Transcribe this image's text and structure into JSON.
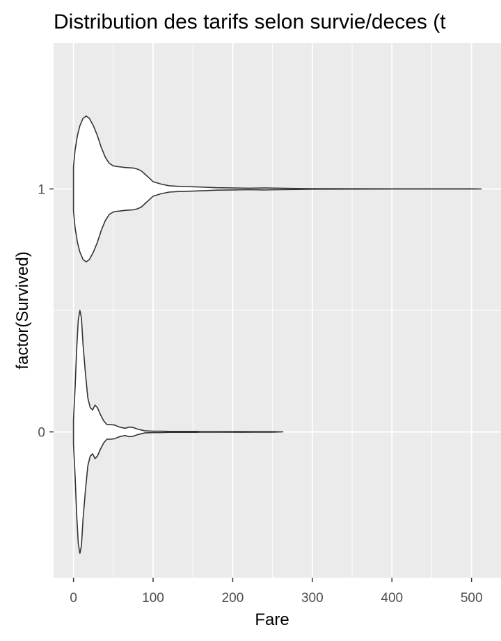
{
  "chart_data": {
    "type": "violin",
    "orientation": "horizontal",
    "title": "Distribution des tarifs selon survie/deces (t",
    "xlabel": "Fare",
    "ylabel": "factor(Survived)",
    "xlim": [
      -25,
      537
    ],
    "ylim": [
      -0.6,
      1.6
    ],
    "x_ticks": [
      0,
      100,
      200,
      300,
      400,
      500
    ],
    "x_tick_labels": [
      "0",
      "100",
      "200",
      "300",
      "400",
      "500"
    ],
    "y_ticks": [
      0,
      1
    ],
    "y_tick_labels": [
      "0",
      "1"
    ],
    "grid": true,
    "legend": "none",
    "colors": {
      "panel": "#ebebeb",
      "grid": "#ffffff",
      "violin_fill": "#ffffff",
      "violin_line": "#333333",
      "tick_label": "#4d4d4d"
    },
    "series": [
      {
        "category": "0",
        "y": 0,
        "x_min": 0,
        "x_max": 263,
        "profile": [
          [
            0,
            0.05
          ],
          [
            2,
            0.18
          ],
          [
            4,
            0.34
          ],
          [
            6,
            0.46
          ],
          [
            8,
            0.5
          ],
          [
            10,
            0.47
          ],
          [
            12,
            0.36
          ],
          [
            15,
            0.24
          ],
          [
            18,
            0.14
          ],
          [
            21,
            0.1
          ],
          [
            24,
            0.09
          ],
          [
            27,
            0.11
          ],
          [
            30,
            0.1
          ],
          [
            34,
            0.07
          ],
          [
            38,
            0.045
          ],
          [
            42,
            0.03
          ],
          [
            47,
            0.03
          ],
          [
            52,
            0.028
          ],
          [
            56,
            0.022
          ],
          [
            60,
            0.018
          ],
          [
            65,
            0.015
          ],
          [
            70,
            0.02
          ],
          [
            75,
            0.018
          ],
          [
            80,
            0.012
          ],
          [
            85,
            0.008
          ],
          [
            90,
            0.004
          ],
          [
            100,
            0.003
          ],
          [
            110,
            0.003
          ],
          [
            120,
            0.002
          ],
          [
            140,
            0.002
          ],
          [
            155,
            0.002
          ],
          [
            160,
            0.001
          ],
          [
            180,
            0.001
          ],
          [
            210,
            0.0015
          ],
          [
            230,
            0.001
          ],
          [
            250,
            0.001
          ],
          [
            263,
            0.0
          ]
        ]
      },
      {
        "category": "1",
        "y": 1,
        "x_min": 0,
        "x_max": 512,
        "profile": [
          [
            0,
            0.09
          ],
          [
            2,
            0.16
          ],
          [
            5,
            0.22
          ],
          [
            8,
            0.26
          ],
          [
            12,
            0.29
          ],
          [
            16,
            0.3
          ],
          [
            20,
            0.29
          ],
          [
            25,
            0.26
          ],
          [
            30,
            0.22
          ],
          [
            35,
            0.17
          ],
          [
            40,
            0.13
          ],
          [
            45,
            0.105
          ],
          [
            50,
            0.095
          ],
          [
            55,
            0.092
          ],
          [
            60,
            0.09
          ],
          [
            65,
            0.088
          ],
          [
            70,
            0.087
          ],
          [
            75,
            0.086
          ],
          [
            80,
            0.082
          ],
          [
            85,
            0.075
          ],
          [
            90,
            0.06
          ],
          [
            95,
            0.045
          ],
          [
            100,
            0.03
          ],
          [
            110,
            0.02
          ],
          [
            120,
            0.013
          ],
          [
            130,
            0.011
          ],
          [
            140,
            0.01
          ],
          [
            150,
            0.009
          ],
          [
            165,
            0.007
          ],
          [
            180,
            0.005
          ],
          [
            200,
            0.004
          ],
          [
            220,
            0.003
          ],
          [
            240,
            0.004
          ],
          [
            260,
            0.003
          ],
          [
            280,
            0.002
          ],
          [
            300,
            0.001
          ],
          [
            350,
            0.0008
          ],
          [
            400,
            0.0005
          ],
          [
            450,
            0.0004
          ],
          [
            500,
            0.0005
          ],
          [
            512,
            0.0
          ]
        ]
      }
    ]
  }
}
